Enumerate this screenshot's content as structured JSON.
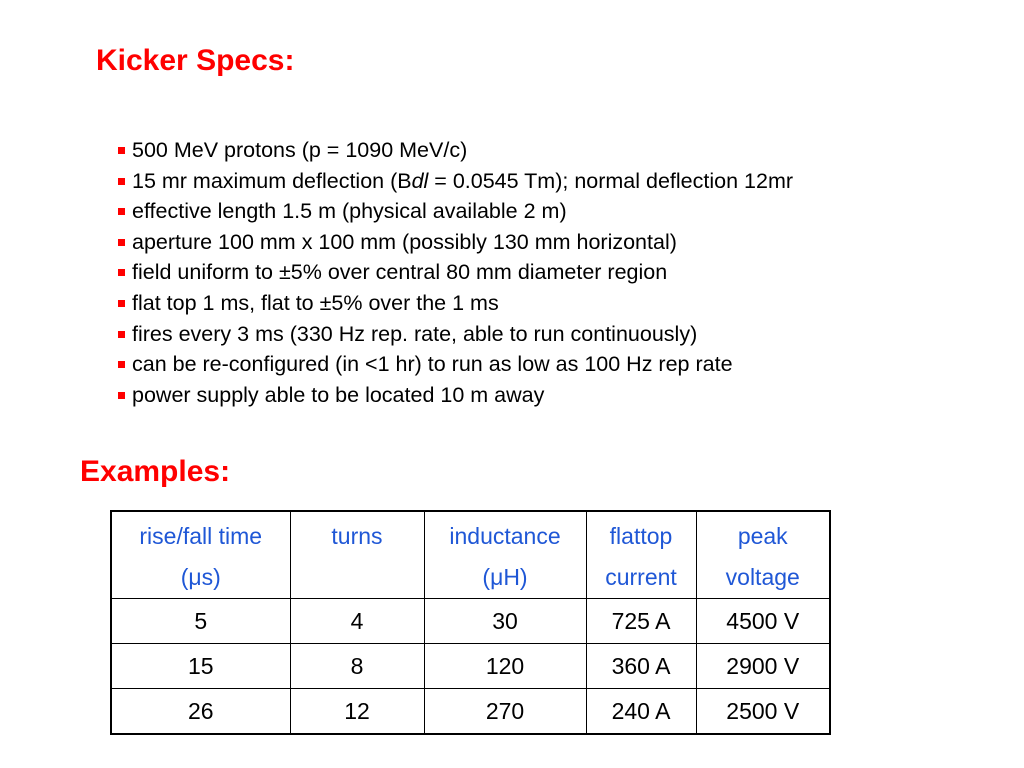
{
  "colors": {
    "heading": "#ff0000",
    "bullet": "#ff0000",
    "table_header": "#1f57d6",
    "text": "#000000"
  },
  "specs": {
    "heading": "Kicker Specs:",
    "items": [
      {
        "text": "500 MeV protons (p = 1090 MeV/c)"
      },
      {
        "pre": "15 mr maximum deflection (B",
        "italic": "dl",
        "post": " = 0.0545 Tm); normal deflection 12mr"
      },
      {
        "text": "effective length 1.5 m (physical available 2 m)"
      },
      {
        "text": "aperture 100 mm x 100 mm (possibly 130 mm horizontal)"
      },
      {
        "text": "field uniform to ±5% over central 80 mm diameter region"
      },
      {
        "text": "flat top 1 ms, flat to ±5% over the 1 ms"
      },
      {
        "text": "fires every 3 ms (330 Hz rep. rate, able to run continuously)"
      },
      {
        "text": "can be re-configured (in <1 hr) to run as low as 100 Hz rep rate"
      },
      {
        "text": "power supply able to be located 10 m away"
      }
    ]
  },
  "examples": {
    "heading": "Examples:",
    "columns": [
      {
        "line1": "rise/fall time",
        "line2": "(μs)"
      },
      {
        "line1": "turns",
        "line2": ""
      },
      {
        "line1": "inductance",
        "line2": "(μH)"
      },
      {
        "line1": "flattop",
        "line2": "current"
      },
      {
        "line1": "peak",
        "line2": "voltage"
      }
    ],
    "rows": [
      [
        "5",
        "4",
        "30",
        "725 A",
        "4500 V"
      ],
      [
        "15",
        "8",
        "120",
        "360 A",
        "2900 V"
      ],
      [
        "26",
        "12",
        "270",
        "240 A",
        "2500 V"
      ]
    ]
  }
}
